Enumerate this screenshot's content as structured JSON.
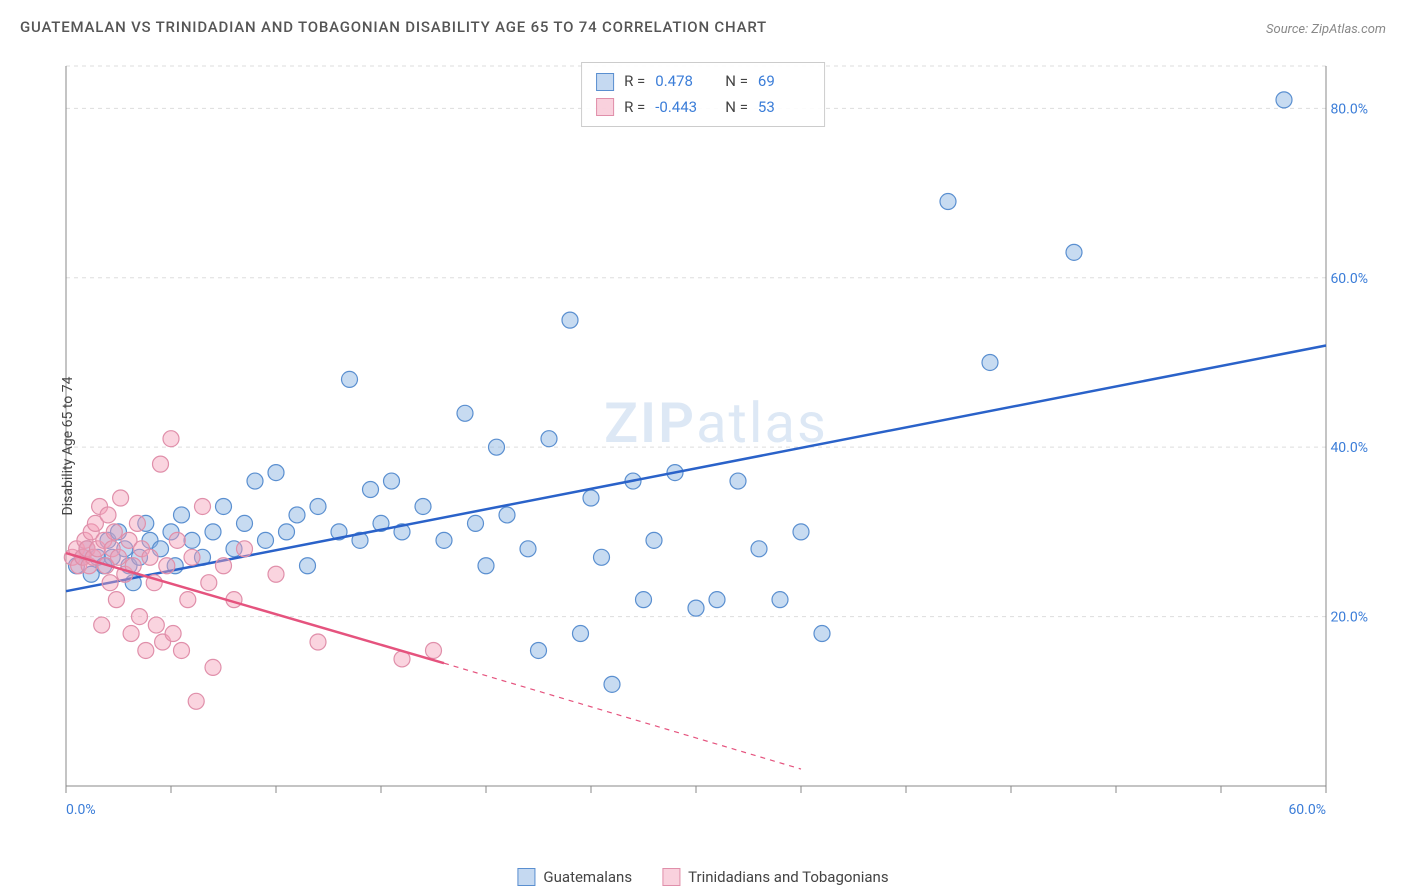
{
  "title": "GUATEMALAN VS TRINIDADIAN AND TOBAGONIAN DISABILITY AGE 65 TO 74 CORRELATION CHART",
  "source": "Source: ZipAtlas.com",
  "y_axis_label": "Disability Age 65 to 74",
  "watermark_bold": "ZIP",
  "watermark_light": "atlas",
  "chart": {
    "type": "scatter",
    "background_color": "#ffffff",
    "grid_color": "#dddddd",
    "axis_color": "#888888",
    "tick_color": "#3b7dd8",
    "tick_fontsize": 14,
    "title_fontsize": 15,
    "xlim": [
      0,
      60
    ],
    "ylim": [
      0,
      85
    ],
    "x_ticks": [
      {
        "v": 0,
        "label": "0.0%"
      },
      {
        "v": 60,
        "label": "60.0%"
      }
    ],
    "x_minor_ticks": [
      5,
      10,
      15,
      20,
      25,
      30,
      35,
      40,
      45,
      50,
      55
    ],
    "y_ticks": [
      {
        "v": 20,
        "label": "20.0%"
      },
      {
        "v": 40,
        "label": "40.0%"
      },
      {
        "v": 60,
        "label": "60.0%"
      },
      {
        "v": 80,
        "label": "80.0%"
      }
    ],
    "series": [
      {
        "name": "Guatemalans",
        "color_fill": "rgba(130,175,225,0.45)",
        "color_stroke": "#5a8fd0",
        "marker_radius": 8,
        "trend": {
          "x1": 0,
          "y1": 23,
          "x2": 60,
          "y2": 52,
          "color": "#2a62c9",
          "width": 2.5,
          "dash": null,
          "extrapolate_dash": null
        },
        "points": [
          [
            0.5,
            26
          ],
          [
            0.8,
            27
          ],
          [
            1.0,
            28
          ],
          [
            1.2,
            25
          ],
          [
            1.5,
            27
          ],
          [
            1.8,
            26
          ],
          [
            2.0,
            29
          ],
          [
            2.2,
            27
          ],
          [
            2.5,
            30
          ],
          [
            2.8,
            28
          ],
          [
            3.0,
            26
          ],
          [
            3.2,
            24
          ],
          [
            3.5,
            27
          ],
          [
            3.8,
            31
          ],
          [
            4.0,
            29
          ],
          [
            4.5,
            28
          ],
          [
            5.0,
            30
          ],
          [
            5.2,
            26
          ],
          [
            5.5,
            32
          ],
          [
            6.0,
            29
          ],
          [
            6.5,
            27
          ],
          [
            7.0,
            30
          ],
          [
            7.5,
            33
          ],
          [
            8.0,
            28
          ],
          [
            8.5,
            31
          ],
          [
            9.0,
            36
          ],
          [
            9.5,
            29
          ],
          [
            10.0,
            37
          ],
          [
            10.5,
            30
          ],
          [
            11.0,
            32
          ],
          [
            11.5,
            26
          ],
          [
            12.0,
            33
          ],
          [
            13.0,
            30
          ],
          [
            13.5,
            48
          ],
          [
            14.0,
            29
          ],
          [
            14.5,
            35
          ],
          [
            15.0,
            31
          ],
          [
            15.5,
            36
          ],
          [
            16.0,
            30
          ],
          [
            17.0,
            33
          ],
          [
            18.0,
            29
          ],
          [
            19.0,
            44
          ],
          [
            19.5,
            31
          ],
          [
            20.0,
            26
          ],
          [
            20.5,
            40
          ],
          [
            21.0,
            32
          ],
          [
            22.0,
            28
          ],
          [
            22.5,
            16
          ],
          [
            23.0,
            41
          ],
          [
            24.0,
            55
          ],
          [
            24.5,
            18
          ],
          [
            25.0,
            34
          ],
          [
            25.5,
            27
          ],
          [
            26.0,
            12
          ],
          [
            27.0,
            36
          ],
          [
            27.5,
            22
          ],
          [
            28.0,
            29
          ],
          [
            29.0,
            37
          ],
          [
            30.0,
            21
          ],
          [
            31.0,
            22
          ],
          [
            32.0,
            36
          ],
          [
            33.0,
            28
          ],
          [
            34.0,
            22
          ],
          [
            35.0,
            30
          ],
          [
            36.0,
            18
          ],
          [
            42.0,
            69
          ],
          [
            44.0,
            50
          ],
          [
            48.0,
            63
          ],
          [
            58.0,
            81
          ]
        ]
      },
      {
        "name": "Trinidadians and Tobagonians",
        "color_fill": "rgba(245,160,185,0.45)",
        "color_stroke": "#e08faa",
        "marker_radius": 8,
        "trend": {
          "x1": 0,
          "y1": 27.5,
          "x2": 18,
          "y2": 14.5,
          "color": "#e5537e",
          "width": 2.5,
          "dash": null,
          "extrapolate": {
            "x2": 35,
            "y2": 2,
            "dash": "5 5"
          }
        },
        "points": [
          [
            0.3,
            27
          ],
          [
            0.5,
            28
          ],
          [
            0.6,
            26
          ],
          [
            0.8,
            27
          ],
          [
            0.9,
            29
          ],
          [
            1.0,
            28
          ],
          [
            1.1,
            26
          ],
          [
            1.2,
            30
          ],
          [
            1.3,
            27
          ],
          [
            1.4,
            31
          ],
          [
            1.5,
            28
          ],
          [
            1.6,
            33
          ],
          [
            1.7,
            19
          ],
          [
            1.8,
            29
          ],
          [
            1.9,
            26
          ],
          [
            2.0,
            32
          ],
          [
            2.1,
            24
          ],
          [
            2.2,
            28
          ],
          [
            2.3,
            30
          ],
          [
            2.4,
            22
          ],
          [
            2.5,
            27
          ],
          [
            2.6,
            34
          ],
          [
            2.8,
            25
          ],
          [
            3.0,
            29
          ],
          [
            3.1,
            18
          ],
          [
            3.2,
            26
          ],
          [
            3.4,
            31
          ],
          [
            3.5,
            20
          ],
          [
            3.6,
            28
          ],
          [
            3.8,
            16
          ],
          [
            4.0,
            27
          ],
          [
            4.2,
            24
          ],
          [
            4.3,
            19
          ],
          [
            4.5,
            38
          ],
          [
            4.6,
            17
          ],
          [
            4.8,
            26
          ],
          [
            5.0,
            41
          ],
          [
            5.1,
            18
          ],
          [
            5.3,
            29
          ],
          [
            5.5,
            16
          ],
          [
            5.8,
            22
          ],
          [
            6.0,
            27
          ],
          [
            6.2,
            10
          ],
          [
            6.5,
            33
          ],
          [
            6.8,
            24
          ],
          [
            7.0,
            14
          ],
          [
            7.5,
            26
          ],
          [
            8.0,
            22
          ],
          [
            8.5,
            28
          ],
          [
            10.0,
            25
          ],
          [
            12.0,
            17
          ],
          [
            16.0,
            15
          ],
          [
            17.5,
            16
          ]
        ]
      }
    ]
  },
  "stats": [
    {
      "swatch": "blue",
      "r_label": "R =",
      "r_value": "0.478",
      "n_label": "N =",
      "n_value": "69"
    },
    {
      "swatch": "pink",
      "r_label": "R =",
      "r_value": "-0.443",
      "n_label": "N =",
      "n_value": "53"
    }
  ],
  "legend": [
    {
      "swatch": "blue",
      "label": "Guatemalans"
    },
    {
      "swatch": "pink",
      "label": "Trinidadians and Tobagonians"
    }
  ]
}
